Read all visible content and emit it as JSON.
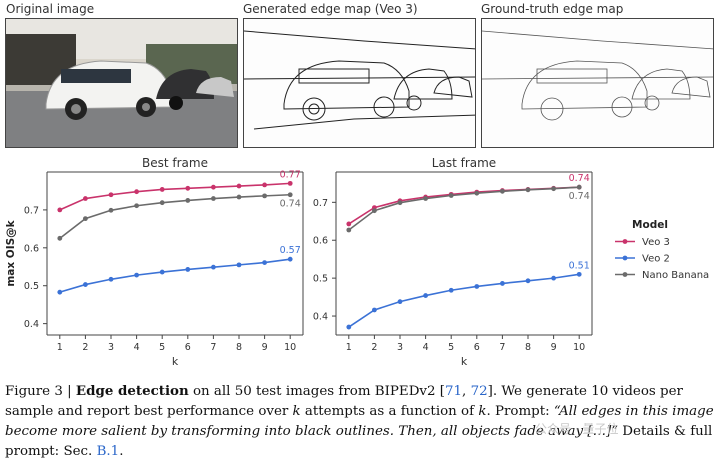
{
  "images": {
    "original_title": "Original image",
    "generated_title": "Generated edge map (Veo 3)",
    "groundtruth_title": "Ground-truth edge map"
  },
  "chart_data": [
    {
      "type": "line",
      "title": "Best frame",
      "xlabel": "k",
      "ylabel": "max OIS@k",
      "x": [
        1,
        2,
        3,
        4,
        5,
        6,
        7,
        8,
        9,
        10
      ],
      "ylim": [
        0.37,
        0.8
      ],
      "yticks": [
        0.4,
        0.5,
        0.6,
        0.7
      ],
      "series": [
        {
          "name": "Veo 3",
          "color": "#c9336b",
          "values": [
            0.7,
            0.73,
            0.74,
            0.748,
            0.754,
            0.757,
            0.76,
            0.763,
            0.766,
            0.77
          ],
          "end_label": "0.77"
        },
        {
          "name": "Veo 2",
          "color": "#3b72d6",
          "values": [
            0.483,
            0.503,
            0.517,
            0.528,
            0.536,
            0.543,
            0.549,
            0.555,
            0.561,
            0.57
          ],
          "end_label": "0.57"
        },
        {
          "name": "Nano Banana",
          "color": "#6b6b6b",
          "values": [
            0.625,
            0.677,
            0.699,
            0.711,
            0.719,
            0.725,
            0.73,
            0.734,
            0.737,
            0.74
          ],
          "end_label": "0.74"
        }
      ]
    },
    {
      "type": "line",
      "title": "Last frame",
      "xlabel": "k",
      "ylabel": "",
      "x": [
        1,
        2,
        3,
        4,
        5,
        6,
        7,
        8,
        9,
        10
      ],
      "ylim": [
        0.35,
        0.78
      ],
      "yticks": [
        0.4,
        0.5,
        0.6,
        0.7
      ],
      "series": [
        {
          "name": "Veo 3",
          "color": "#c9336b",
          "values": [
            0.643,
            0.686,
            0.704,
            0.714,
            0.721,
            0.727,
            0.731,
            0.734,
            0.737,
            0.74
          ],
          "end_label": "0.74"
        },
        {
          "name": "Veo 2",
          "color": "#3b72d6",
          "values": [
            0.371,
            0.416,
            0.438,
            0.454,
            0.468,
            0.478,
            0.486,
            0.493,
            0.5,
            0.51
          ],
          "end_label": "0.51"
        },
        {
          "name": "Nano Banana",
          "color": "#6b6b6b",
          "values": [
            0.627,
            0.678,
            0.699,
            0.71,
            0.718,
            0.724,
            0.729,
            0.733,
            0.736,
            0.74
          ],
          "end_label": "0.74"
        }
      ]
    }
  ],
  "legend": {
    "title": "Model",
    "items": [
      {
        "label": "Veo 3",
        "color": "#c9336b"
      },
      {
        "label": "Veo 2",
        "color": "#3b72d6"
      },
      {
        "label": "Nano Banana",
        "color": "#6b6b6b"
      }
    ]
  },
  "caption": {
    "fig": "Figure 3 | ",
    "bold": "Edge detection",
    "t1": " on all 50 test images from BIPEDv2 [",
    "ref1": "71",
    "sep": ", ",
    "ref2": "72",
    "t2": "]. We generate 10 videos per sample and report best performance over ",
    "k1": "k",
    "t3": " attempts as a function of ",
    "k2": "k",
    "t4": ". Prompt: ",
    "prompt": "“All edges in this image become more salient by transforming into black outlines. Then, all objects fade away […]”",
    "t5": " Details & full prompt: Sec. ",
    "sec": "B.1",
    "t6": "."
  },
  "watermark": "公众号 · 量子位"
}
